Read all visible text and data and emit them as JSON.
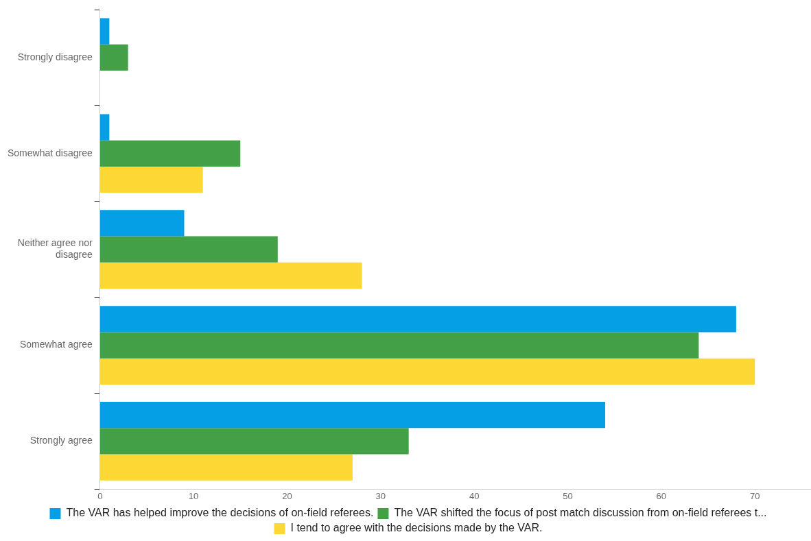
{
  "chart_data": {
    "type": "bar",
    "orientation": "horizontal",
    "categories": [
      "Strongly disagree",
      "Somewhat disagree",
      "Neither agree nor disagree",
      "Somewhat agree",
      "Strongly agree"
    ],
    "series": [
      {
        "name": "The VAR has helped improve the decisions of on-field referees.",
        "color": "#049fe5",
        "values": [
          1,
          1,
          9,
          68,
          54
        ]
      },
      {
        "name": "The VAR shifted the focus of post match discussion from on-field referees t...",
        "color": "#43a047",
        "values": [
          3,
          15,
          19,
          64,
          33
        ]
      },
      {
        "name": "I tend to agree with the decisions made by the VAR.",
        "color": "#fdd835",
        "values": [
          0,
          11,
          28,
          70,
          27
        ]
      }
    ],
    "xlim": [
      0,
      76
    ],
    "xticks": [
      0,
      10,
      20,
      30,
      40,
      50,
      60,
      70
    ],
    "grid": false,
    "legend": "bottom"
  }
}
